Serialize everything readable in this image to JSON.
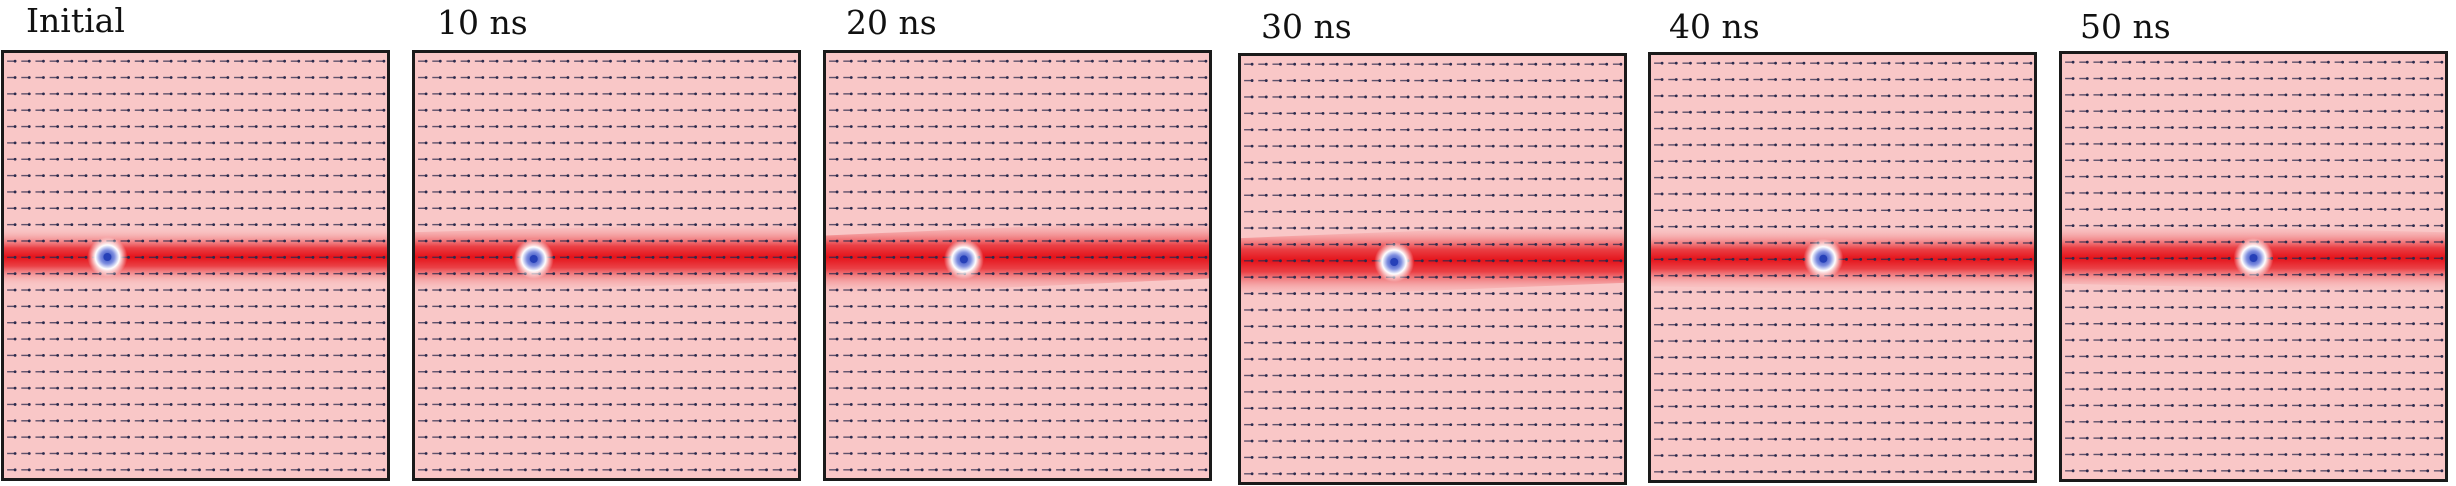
{
  "figure": {
    "panels": [
      {
        "label": "Initial",
        "skyrmion_position": 0.27,
        "wall_tilt": 0.0
      },
      {
        "label": "10 ns",
        "skyrmion_position": 0.31,
        "wall_tilt": -0.012
      },
      {
        "label": "20 ns",
        "skyrmion_position": 0.36,
        "wall_tilt": -0.02
      },
      {
        "label": "30 ns",
        "skyrmion_position": 0.4,
        "wall_tilt": -0.018
      },
      {
        "label": "40 ns",
        "skyrmion_position": 0.45,
        "wall_tilt": 0.006
      },
      {
        "label": "50 ns",
        "skyrmion_position": 0.5,
        "wall_tilt": 0.01
      }
    ],
    "colors": {
      "background_domain": "#f9c7c7",
      "domain_wall": "#e5131a",
      "skyrmion_halo": "#ffffff",
      "skyrmion_core": "#2640b8",
      "arrow": "#2b2a4c",
      "frame": "#1a1a1a"
    }
  }
}
